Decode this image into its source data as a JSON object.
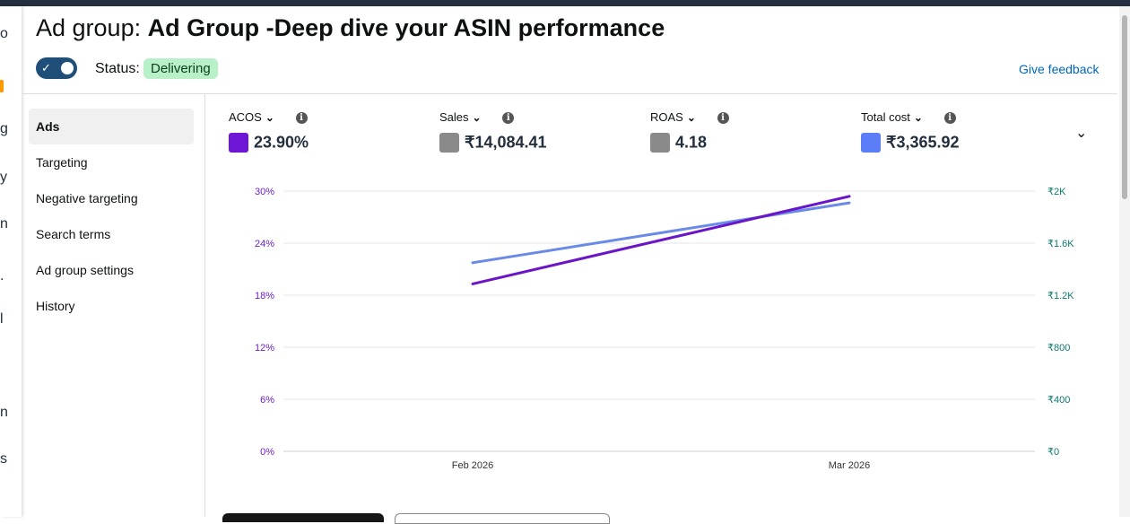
{
  "header": {
    "title_prefix": "Ad group:",
    "title_name": "Ad Group -Deep dive your ASIN performance",
    "status_label": "Status:",
    "status_value": "Delivering",
    "feedback_link": "Give feedback"
  },
  "sidebar": {
    "items": [
      {
        "label": "Ads",
        "active": true
      },
      {
        "label": "Targeting"
      },
      {
        "label": "Negative targeting"
      },
      {
        "label": "Search terms"
      },
      {
        "label": "Ad group settings"
      },
      {
        "label": "History"
      }
    ]
  },
  "metrics": [
    {
      "label": "ACOS",
      "value": "23.90%",
      "color": "#6d16d6"
    },
    {
      "label": "Sales",
      "value": "₹14,084.41",
      "color": "#8a8a8a"
    },
    {
      "label": "ROAS",
      "value": "4.18",
      "color": "#8a8a8a"
    },
    {
      "label": "Total cost",
      "value": "₹3,365.92",
      "color": "#5b7df7"
    }
  ],
  "chart_data": {
    "type": "line",
    "categories": [
      "Feb 2026",
      "Mar 2026"
    ],
    "series": [
      {
        "name": "ACOS",
        "axis": "left",
        "color": "#6a16c8",
        "values": [
          19.3,
          29.4
        ]
      },
      {
        "name": "Total cost",
        "axis": "right",
        "color": "#6a8ae8",
        "values": [
          1450,
          1910
        ]
      }
    ],
    "y_left": {
      "min": 0,
      "max": 30,
      "ticks": [
        "0%",
        "6%",
        "12%",
        "18%",
        "24%",
        "30%"
      ],
      "color": "#6b20c0"
    },
    "y_right": {
      "min": 0,
      "max": 2000,
      "ticks": [
        "₹0",
        "₹400",
        "₹800",
        "₹1.2K",
        "₹1.6K",
        "₹2K"
      ],
      "color": "#0b7a6e"
    },
    "grid": true,
    "legend": "none"
  }
}
